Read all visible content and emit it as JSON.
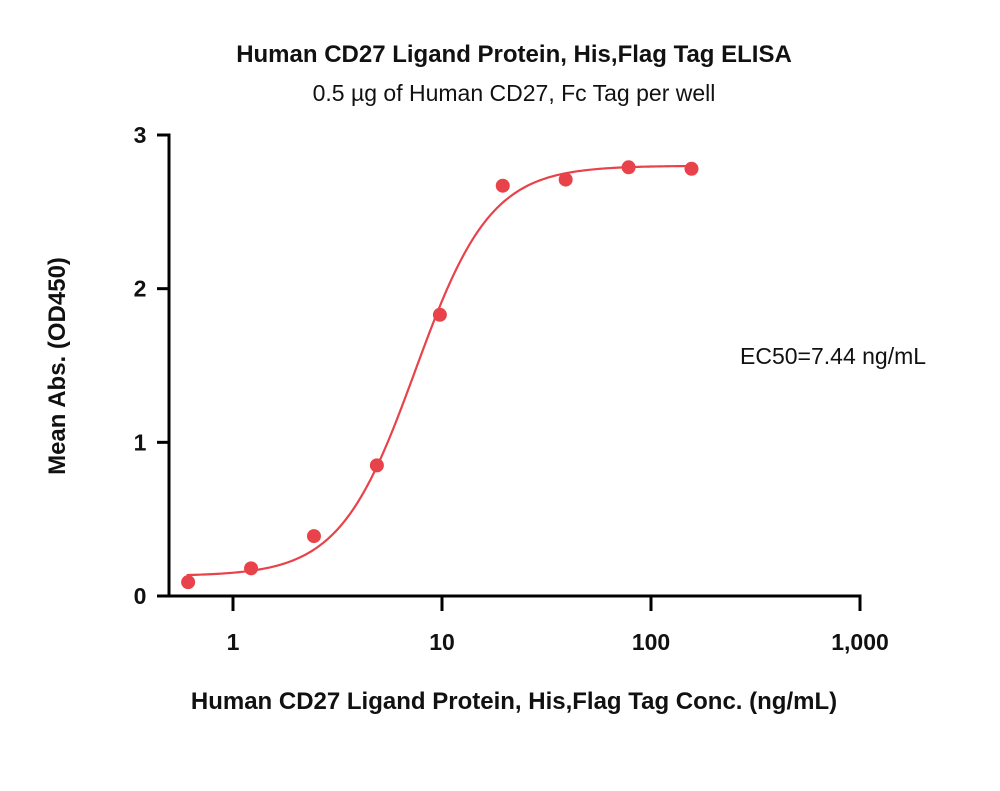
{
  "chart_data": {
    "type": "scatter",
    "title": "Human CD27 Ligand Protein, His,Flag Tag ELISA",
    "subtitle": "0.5 µg of Human CD27, Fc Tag per well",
    "xlabel": "Human CD27 Ligand Protein, His,Flag Tag Conc. (ng/mL)",
    "ylabel": "Mean Abs. (OD450)",
    "xscale": "log",
    "xlim": [
      0.5,
      1000
    ],
    "ylim": [
      0,
      3
    ],
    "xticks": [
      1,
      10,
      100,
      1000
    ],
    "xtick_labels": [
      "1",
      "10",
      "100",
      "1,000"
    ],
    "yticks": [
      0,
      1,
      2,
      3
    ],
    "ytick_labels": [
      "0",
      "1",
      "2",
      "3"
    ],
    "grid": false,
    "series": [
      {
        "x": [
          0.61,
          1.22,
          2.44,
          4.88,
          9.77,
          19.53,
          39.06,
          78.13,
          156.25
        ],
        "y": [
          0.09,
          0.18,
          0.39,
          0.85,
          1.83,
          2.67,
          2.71,
          2.79,
          2.78
        ],
        "color": "#e8424a"
      }
    ],
    "fit": {
      "model": "4PL",
      "bottom": 0.13,
      "top": 2.8,
      "ec50": 7.44,
      "hill": 2.4,
      "x_range": [
        0.6,
        156.25
      ]
    },
    "annotations": [
      {
        "text": "EC50=7.44 ng/mL"
      }
    ]
  }
}
